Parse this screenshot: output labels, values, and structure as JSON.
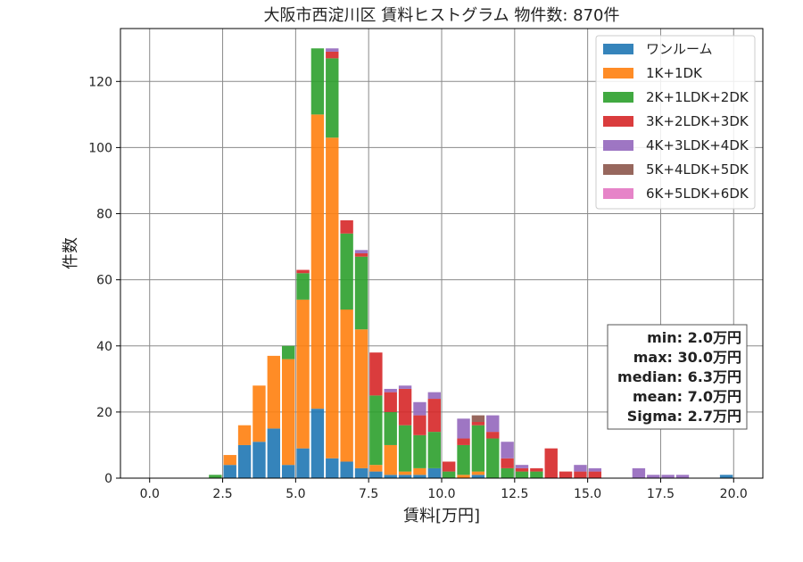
{
  "chart_data": {
    "type": "bar",
    "stacked": true,
    "title": "大阪市西淀川区 賃料ヒストグラム  物件数: 870件",
    "xlabel": "賃料[万円]",
    "ylabel": "件数",
    "xlim": [
      -1.0,
      21.0
    ],
    "ylim": [
      0,
      136
    ],
    "xticks": [
      0.0,
      2.5,
      5.0,
      7.5,
      10.0,
      12.5,
      15.0,
      17.5,
      20.0
    ],
    "xtick_labels": [
      "0.0",
      "2.5",
      "5.0",
      "7.5",
      "10.0",
      "12.5",
      "15.0",
      "17.5",
      "20.0"
    ],
    "yticks": [
      0,
      20,
      40,
      60,
      80,
      100,
      120
    ],
    "ytick_labels": [
      "0",
      "20",
      "40",
      "60",
      "80",
      "100",
      "120"
    ],
    "grid": true,
    "legend_position": "top-right",
    "bins": [
      2.0,
      2.5,
      3.0,
      3.5,
      4.0,
      4.5,
      5.0,
      5.5,
      6.0,
      6.5,
      7.0,
      7.5,
      8.0,
      8.5,
      9.0,
      9.5,
      10.0,
      10.5,
      11.0,
      11.5,
      12.0,
      12.5,
      13.0,
      13.5,
      14.0,
      14.5,
      15.0,
      16.5,
      17.0,
      17.5,
      18.0,
      19.5
    ],
    "series": [
      {
        "name": "ワンルーム",
        "color": "#1f77b4",
        "values": [
          0,
          4,
          10,
          11,
          15,
          4,
          9,
          21,
          6,
          5,
          3,
          2,
          1,
          1,
          1,
          3,
          0,
          0,
          1,
          0,
          0,
          0,
          0,
          0,
          0,
          0,
          0,
          0,
          0,
          0,
          0,
          1
        ]
      },
      {
        "name": "1K+1DK",
        "color": "#ff7f0e",
        "values": [
          0,
          3,
          6,
          17,
          22,
          32,
          45,
          89,
          97,
          46,
          42,
          2,
          9,
          1,
          2,
          0,
          0,
          1,
          1,
          0,
          0,
          0,
          0,
          0,
          0,
          0,
          0,
          0,
          0,
          0,
          0,
          0
        ]
      },
      {
        "name": "2K+1LDK+2DK",
        "color": "#2ca02c",
        "values": [
          1,
          0,
          0,
          0,
          0,
          4,
          8,
          20,
          24,
          23,
          22,
          21,
          10,
          14,
          10,
          11,
          2,
          9,
          14,
          12,
          3,
          2,
          2,
          0,
          0,
          0,
          0,
          0,
          0,
          0,
          0,
          0
        ]
      },
      {
        "name": "3K+2LDK+3DK",
        "color": "#d62728",
        "values": [
          0,
          0,
          0,
          0,
          0,
          0,
          1,
          0,
          2,
          4,
          1,
          13,
          6,
          11,
          6,
          10,
          3,
          2,
          1,
          2,
          3,
          1,
          1,
          9,
          2,
          2,
          2,
          0,
          0,
          0,
          0,
          0
        ]
      },
      {
        "name": "4K+3LDK+4DK",
        "color": "#9467bd",
        "values": [
          0,
          0,
          0,
          0,
          0,
          0,
          0,
          0,
          1,
          0,
          1,
          0,
          1,
          1,
          4,
          2,
          0,
          6,
          0,
          5,
          5,
          1,
          0,
          0,
          0,
          2,
          1,
          3,
          1,
          1,
          1,
          0
        ]
      },
      {
        "name": "5K+4LDK+5DK",
        "color": "#8c564b",
        "values": [
          0,
          0,
          0,
          0,
          0,
          0,
          0,
          0,
          0,
          0,
          0,
          0,
          0,
          0,
          0,
          0,
          0,
          0,
          2,
          0,
          0,
          0,
          0,
          0,
          0,
          0,
          0,
          0,
          0,
          0,
          0,
          0
        ]
      },
      {
        "name": "6K+5LDK+6DK",
        "color": "#e377c2",
        "values": [
          0,
          0,
          0,
          0,
          0,
          0,
          0,
          0,
          0,
          0,
          0,
          0,
          0,
          0,
          0,
          0,
          0,
          0,
          0,
          0,
          0,
          0,
          0,
          0,
          0,
          0,
          0,
          0,
          0,
          0,
          0,
          0
        ]
      }
    ],
    "stats": [
      "min: 2.0万円",
      "max: 30.0万円",
      "median: 6.3万円",
      "mean: 7.0万円",
      "Sigma: 2.7万円"
    ]
  }
}
